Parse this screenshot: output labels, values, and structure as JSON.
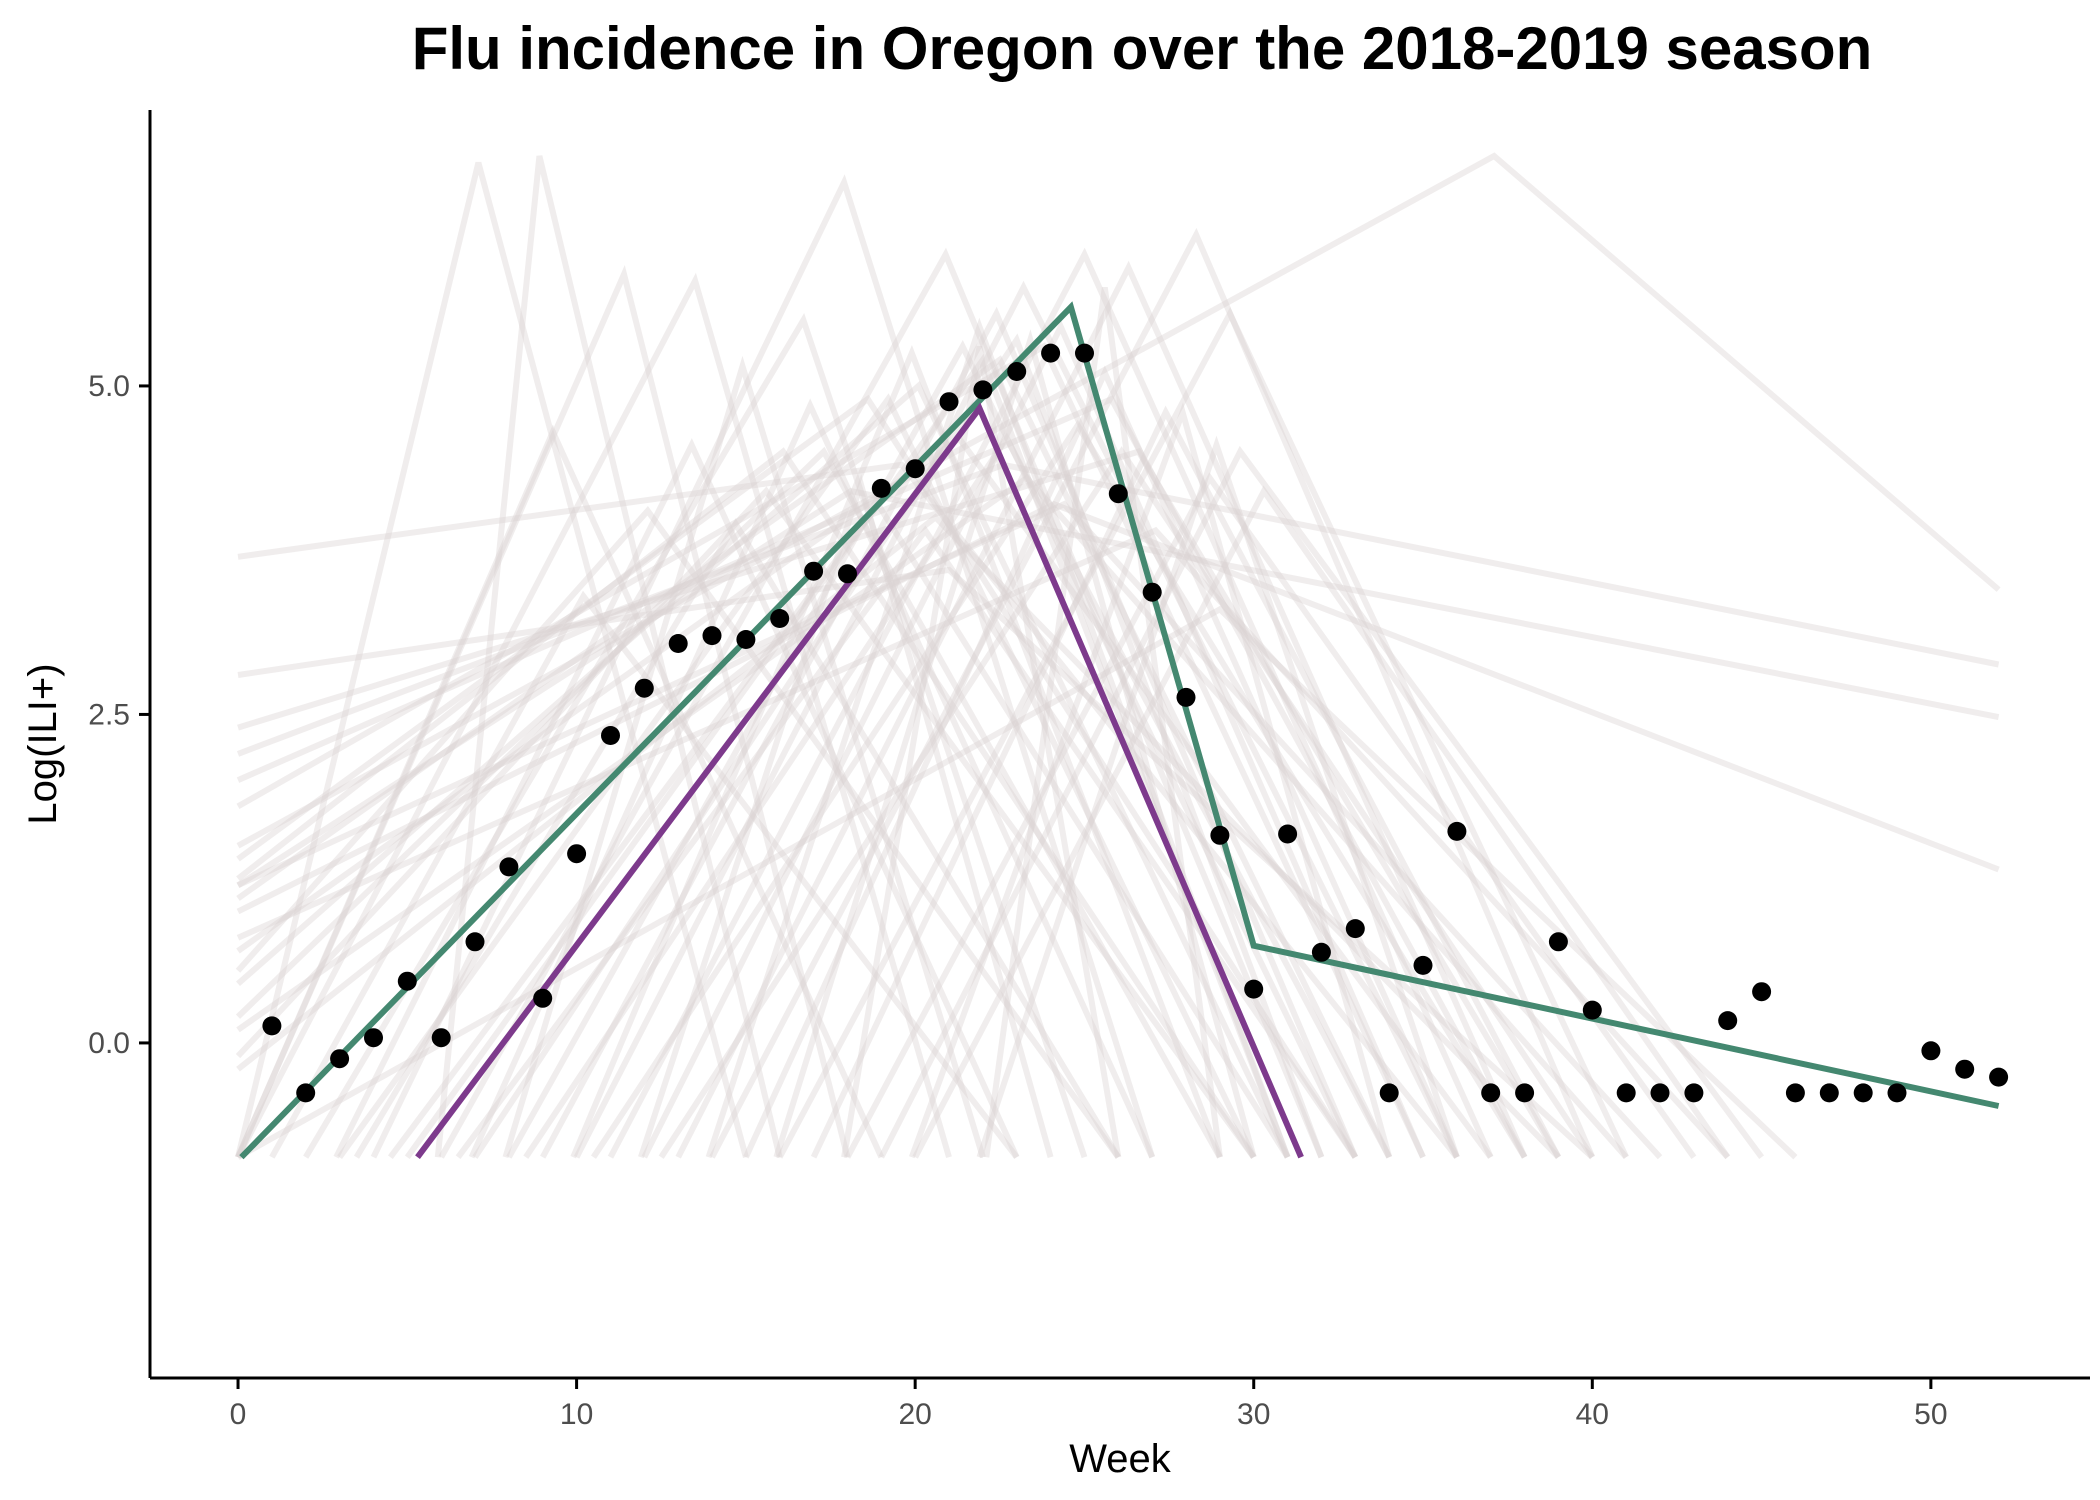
{
  "chart_data": {
    "type": "line",
    "title": "Flu incidence in Oregon over the 2018-2019 season",
    "xlabel": "Week",
    "ylabel": "Log(ILI+)",
    "xlim": [
      -2.6,
      54.7
    ],
    "ylim": [
      -2.55,
      7.1
    ],
    "x_ticks": [
      0,
      10,
      20,
      30,
      40,
      50
    ],
    "x_tick_labels": [
      "0",
      "10",
      "20",
      "30",
      "40",
      "50"
    ],
    "y_ticks": [
      0,
      2.5,
      5
    ],
    "y_tick_labels": [
      "0.0",
      "2.5",
      "5.0"
    ],
    "grid": false,
    "legend": "none",
    "colors": {
      "observed": "#000000",
      "fitted": "#448870",
      "alternate": "#7d3a8c",
      "samples": "#d9d2d2"
    },
    "series": [
      {
        "kind": "points",
        "x": [
          1,
          2,
          3,
          4,
          5,
          6,
          7,
          8,
          9,
          10,
          11,
          12,
          13,
          14,
          15,
          16,
          17,
          18,
          19,
          20,
          21,
          22,
          23,
          24,
          25,
          26,
          27,
          28,
          29,
          30,
          31,
          32,
          33,
          34,
          35,
          36,
          37,
          38,
          39,
          40,
          41,
          42,
          43,
          44,
          45,
          46,
          47,
          48,
          49,
          50,
          51,
          52
        ],
        "y": [
          0.13,
          -0.38,
          -0.12,
          0.04,
          0.47,
          0.04,
          0.77,
          1.34,
          0.34,
          1.44,
          2.34,
          2.7,
          3.04,
          3.1,
          3.07,
          3.23,
          3.59,
          3.57,
          4.22,
          4.37,
          4.88,
          4.97,
          5.11,
          5.25,
          5.25,
          4.18,
          3.43,
          2.63,
          1.58,
          0.41,
          1.59,
          0.69,
          0.87,
          -0.38,
          0.59,
          1.61,
          -0.38,
          -0.38,
          0.77,
          0.25,
          -0.38,
          -0.38,
          -0.38,
          0.17,
          0.39,
          -0.38,
          -0.38,
          -0.38,
          -0.38,
          -0.06,
          -0.2,
          -0.26
        ]
      },
      {
        "kind": "line",
        "x": [
          0.1,
          24.6,
          30.0,
          52.0
        ],
        "y": [
          -0.87,
          5.6,
          0.74,
          -0.48
        ]
      },
      {
        "kind": "line",
        "x": [
          5.3,
          21.9,
          31.4
        ],
        "y": [
          -0.87,
          4.83,
          -0.87
        ]
      },
      {
        "kind": "samples",
        "paths": [
          {
            "x": [
              0,
              11.4,
              18
            ],
            "y": [
              -0.87,
              5.85,
              -0.87
            ]
          },
          {
            "x": [
              0,
              7.1,
              15
            ],
            "y": [
              -0.87,
              6.7,
              -0.87
            ]
          },
          {
            "x": [
              0,
              13.5,
              21
            ],
            "y": [
              -0.87,
              5.8,
              -0.87
            ]
          },
          {
            "x": [
              2,
              16.7,
              25
            ],
            "y": [
              -0.87,
              5.5,
              -0.87
            ]
          },
          {
            "x": [
              4,
              17.9,
              27
            ],
            "y": [
              -0.87,
              6.55,
              -0.87
            ]
          },
          {
            "x": [
              6,
              20.9,
              32
            ],
            "y": [
              -0.87,
              6.0,
              -0.87
            ]
          },
          {
            "x": [
              8,
              21.4,
              33
            ],
            "y": [
              -0.87,
              5.3,
              -0.87
            ]
          },
          {
            "x": [
              10,
              23.2,
              36
            ],
            "y": [
              -0.87,
              5.75,
              -0.87
            ]
          },
          {
            "x": [
              11,
              25,
              37
            ],
            "y": [
              -0.87,
              6.0,
              -0.87
            ]
          },
          {
            "x": [
              13,
              26.3,
              38
            ],
            "y": [
              -0.87,
              5.9,
              -0.87
            ]
          },
          {
            "x": [
              14,
              28.3,
              40
            ],
            "y": [
              -0.87,
              6.15,
              -0.87
            ]
          },
          {
            "x": [
              16,
              29.3,
              41
            ],
            "y": [
              -0.87,
              5.55,
              -0.87
            ]
          },
          {
            "x": [
              0,
              20.1,
              31
            ],
            "y": [
              0.45,
              5.0,
              -0.87
            ]
          },
          {
            "x": [
              0,
              22.5,
              34
            ],
            "y": [
              1.1,
              5.2,
              -0.87
            ]
          },
          {
            "x": [
              0,
              23.8,
              35
            ],
            "y": [
              1.8,
              5.3,
              -0.87
            ]
          },
          {
            "x": [
              0,
              25.8,
              38
            ],
            "y": [
              2.0,
              4.9,
              -0.87
            ]
          },
          {
            "x": [
              0,
              26.6,
              39
            ],
            "y": [
              2.4,
              4.5,
              -0.87
            ]
          },
          {
            "x": [
              0,
              19.6,
              36
            ],
            "y": [
              3.7,
              4.4,
              -0.87
            ]
          },
          {
            "x": [
              0,
              18.6,
              33
            ],
            "y": [
              1.4,
              4.9,
              -0.87
            ]
          },
          {
            "x": [
              0,
              21.3,
              37
            ],
            "y": [
              0.7,
              4.6,
              -0.87
            ]
          },
          {
            "x": [
              0,
              15.6,
              30
            ],
            "y": [
              -0.1,
              4.2,
              -0.87
            ]
          },
          {
            "x": [
              0,
              17.3,
              29
            ],
            "y": [
              0.2,
              4.5,
              -0.87
            ]
          },
          {
            "x": [
              0,
              24.4,
              42
            ],
            "y": [
              1.2,
              4.1,
              -0.87
            ]
          },
          {
            "x": [
              0,
              27.1,
              44
            ],
            "y": [
              0.8,
              3.9,
              -0.87
            ]
          },
          {
            "x": [
              0,
              23.3,
              41
            ],
            "y": [
              0.1,
              4.3,
              -0.87
            ]
          },
          {
            "x": [
              0,
              20.6,
              39
            ],
            "y": [
              -0.2,
              4.0,
              -0.87
            ]
          },
          {
            "x": [
              0,
              9.3,
              19
            ],
            "y": [
              -0.87,
              4.65,
              -0.87
            ]
          },
          {
            "x": [
              3,
              19.2,
              30
            ],
            "y": [
              -0.87,
              4.9,
              -0.87
            ]
          },
          {
            "x": [
              5,
              22.0,
              31
            ],
            "y": [
              -0.87,
              5.2,
              -0.87
            ]
          },
          {
            "x": [
              7,
              23.0,
              32
            ],
            "y": [
              -0.87,
              5.35,
              -0.87
            ]
          },
          {
            "x": [
              9,
              22.4,
              33
            ],
            "y": [
              -0.87,
              5.55,
              -0.87
            ]
          },
          {
            "x": [
              12,
              24.3,
              35
            ],
            "y": [
              -0.87,
              5.45,
              -0.87
            ]
          },
          {
            "x": [
              15,
              25.6,
              36
            ],
            "y": [
              -0.87,
              5.1,
              -0.87
            ]
          },
          {
            "x": [
              17,
              27.4,
              39
            ],
            "y": [
              -0.87,
              4.8,
              -0.87
            ]
          },
          {
            "x": [
              18,
              28.7,
              43
            ],
            "y": [
              -0.87,
              4.3,
              -0.87
            ]
          },
          {
            "x": [
              19,
              29.6,
              45
            ],
            "y": [
              -0.87,
              4.5,
              -0.87
            ]
          },
          {
            "x": [
              20,
              30.3,
              44
            ],
            "y": [
              -0.87,
              4.2,
              -0.87
            ]
          },
          {
            "x": [
              6.5,
              20.3,
              33
            ],
            "y": [
              -0.87,
              3.9,
              -0.87
            ]
          },
          {
            "x": [
              4.5,
              18.9,
              31
            ],
            "y": [
              -0.87,
              4.1,
              -0.87
            ]
          },
          {
            "x": [
              8.5,
              22.7,
              34
            ],
            "y": [
              -0.87,
              4.6,
              -0.87
            ]
          },
          {
            "x": [
              10.5,
              24.8,
              38
            ],
            "y": [
              -0.87,
              4.7,
              -0.87
            ]
          },
          {
            "x": [
              1,
              10.2,
              23
            ],
            "y": [
              -0.87,
              3.4,
              -0.87
            ]
          },
          {
            "x": [
              3.5,
              14.7,
              26
            ],
            "y": [
              -0.87,
              3.95,
              -0.87
            ]
          },
          {
            "x": [
              12.5,
              26.1,
              40
            ],
            "y": [
              -0.87,
              4.5,
              -0.87
            ]
          },
          {
            "x": [
              0,
              12.1,
              26
            ],
            "y": [
              0.55,
              4.05,
              -0.87
            ]
          },
          {
            "x": [
              0,
              16.1,
              30
            ],
            "y": [
              1.25,
              4.5,
              -0.87
            ]
          },
          {
            "x": [
              0,
              21.0,
              40
            ],
            "y": [
              2.8,
              3.6,
              -0.87
            ]
          },
          {
            "x": [
              0,
              29.0,
              46
            ],
            "y": [
              -0.87,
              3.3,
              -0.87
            ]
          },
          {
            "x": [
              0,
              18.1,
              52
            ],
            "y": [
              1.2,
              4.2,
              2.48
            ]
          },
          {
            "x": [
              0,
              22.6,
              52
            ],
            "y": [
              2.2,
              4.4,
              2.88
            ]
          },
          {
            "x": [
              0,
              37.1,
              52
            ],
            "y": [
              1.5,
              6.75,
              3.45
            ]
          },
          {
            "x": [
              0,
              24.1,
              52
            ],
            "y": [
              1.0,
              4.1,
              1.32
            ]
          },
          {
            "x": [
              5.9,
              8.9,
              16
            ],
            "y": [
              -0.87,
              6.75,
              -0.87
            ]
          },
          {
            "x": [
              22.1,
              25.6,
              29
            ],
            "y": [
              -0.87,
              5.75,
              -0.87
            ]
          },
          {
            "x": [
              17.9,
              21.9,
              26
            ],
            "y": [
              -0.87,
              5.3,
              -0.87
            ]
          },
          {
            "x": [
              7.9,
              14.9,
              22
            ],
            "y": [
              -0.87,
              5.15,
              -0.87
            ]
          },
          {
            "x": [
              13.9,
              21.9,
              31
            ],
            "y": [
              -0.87,
              5.45,
              -0.87
            ]
          },
          {
            "x": [
              2.9,
              13.4,
              23
            ],
            "y": [
              -0.87,
              4.55,
              -0.87
            ]
          },
          {
            "x": [
              9.9,
              19.9,
              29
            ],
            "y": [
              -0.87,
              5.25,
              -0.87
            ]
          },
          {
            "x": [
              15.9,
              23.4,
              30
            ],
            "y": [
              -0.87,
              5.35,
              -0.87
            ]
          },
          {
            "x": [
              11.9,
              18.4,
              24
            ],
            "y": [
              -0.87,
              4.25,
              -0.87
            ]
          },
          {
            "x": [
              6.9,
              16.9,
              27
            ],
            "y": [
              -0.87,
              4.85,
              -0.87
            ]
          },
          {
            "x": [
              19.9,
              27.9,
              34
            ],
            "y": [
              -0.87,
              4.8,
              -0.87
            ]
          },
          {
            "x": [
              21.9,
              28.9,
              36
            ],
            "y": [
              -0.87,
              4.55,
              -0.87
            ]
          }
        ]
      }
    ]
  }
}
